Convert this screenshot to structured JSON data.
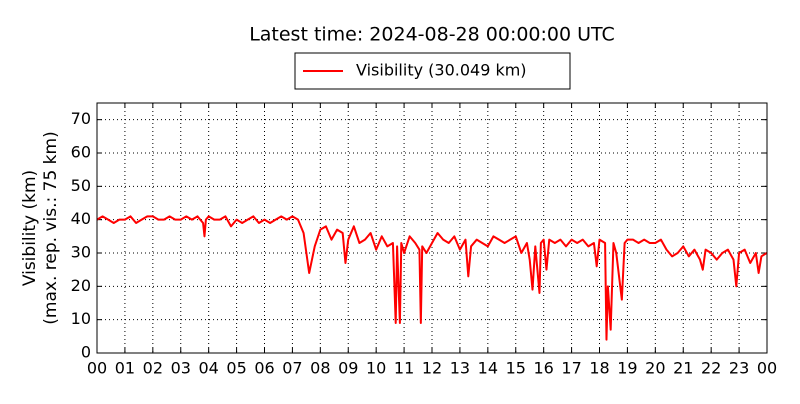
{
  "chart_data": {
    "type": "line",
    "title": "Latest time: 2024-08-28 00:00:00 UTC",
    "y_label": [
      "Visibility (km)",
      "(max. rep. vis.: 75 km)"
    ],
    "legend_position": "top",
    "grid": true,
    "xlim": [
      0,
      24
    ],
    "xticks": [
      {
        "value": 0,
        "label": "00"
      },
      {
        "value": 1,
        "label": "01"
      },
      {
        "value": 2,
        "label": "02"
      },
      {
        "value": 3,
        "label": "03"
      },
      {
        "value": 4,
        "label": "04"
      },
      {
        "value": 5,
        "label": "05"
      },
      {
        "value": 6,
        "label": "06"
      },
      {
        "value": 7,
        "label": "07"
      },
      {
        "value": 8,
        "label": "08"
      },
      {
        "value": 9,
        "label": "09"
      },
      {
        "value": 10,
        "label": "10"
      },
      {
        "value": 11,
        "label": "11"
      },
      {
        "value": 12,
        "label": "12"
      },
      {
        "value": 13,
        "label": "13"
      },
      {
        "value": 14,
        "label": "14"
      },
      {
        "value": 15,
        "label": "15"
      },
      {
        "value": 16,
        "label": "16"
      },
      {
        "value": 17,
        "label": "17"
      },
      {
        "value": 18,
        "label": "18"
      },
      {
        "value": 19,
        "label": "19"
      },
      {
        "value": 20,
        "label": "20"
      },
      {
        "value": 21,
        "label": "21"
      },
      {
        "value": 22,
        "label": "22"
      },
      {
        "value": 23,
        "label": "23"
      },
      {
        "value": 24,
        "label": "00"
      }
    ],
    "ylim": [
      0,
      75
    ],
    "yticks": [
      0,
      10,
      20,
      30,
      40,
      50,
      60,
      70
    ],
    "x": [
      0,
      0.2,
      0.4,
      0.6,
      0.8,
      1.0,
      1.2,
      1.4,
      1.6,
      1.8,
      2.0,
      2.2,
      2.4,
      2.6,
      2.8,
      3.0,
      3.2,
      3.4,
      3.6,
      3.8,
      3.85,
      3.9,
      4.0,
      4.2,
      4.4,
      4.6,
      4.8,
      5.0,
      5.2,
      5.4,
      5.6,
      5.8,
      6.0,
      6.2,
      6.4,
      6.6,
      6.8,
      7.0,
      7.2,
      7.4,
      7.5,
      7.6,
      7.7,
      7.8,
      8.0,
      8.2,
      8.4,
      8.6,
      8.8,
      8.9,
      9.0,
      9.2,
      9.4,
      9.6,
      9.8,
      10.0,
      10.2,
      10.4,
      10.6,
      10.7,
      10.75,
      10.85,
      10.9,
      11.0,
      11.2,
      11.4,
      11.55,
      11.6,
      11.65,
      11.8,
      12.0,
      12.2,
      12.4,
      12.6,
      12.8,
      13.0,
      13.2,
      13.3,
      13.4,
      13.6,
      13.8,
      14.0,
      14.2,
      14.4,
      14.6,
      14.8,
      15.0,
      15.2,
      15.4,
      15.5,
      15.6,
      15.7,
      15.85,
      15.9,
      16.0,
      16.1,
      16.2,
      16.4,
      16.6,
      16.8,
      17.0,
      17.2,
      17.4,
      17.6,
      17.8,
      17.9,
      18.0,
      18.2,
      18.25,
      18.3,
      18.4,
      18.5,
      18.6,
      18.8,
      18.9,
      19.0,
      19.2,
      19.4,
      19.6,
      19.8,
      20.0,
      20.2,
      20.4,
      20.6,
      20.8,
      21.0,
      21.2,
      21.4,
      21.6,
      21.7,
      21.8,
      22.0,
      22.2,
      22.4,
      22.6,
      22.8,
      22.9,
      23.0,
      23.2,
      23.4,
      23.6,
      23.7,
      23.8,
      24.0
    ],
    "series": [
      {
        "name": "Visibility (30.049 km)",
        "color": "#ff0000",
        "values": [
          40,
          41,
          40,
          39,
          40,
          40,
          41,
          39,
          40,
          41,
          41,
          40,
          40,
          41,
          40,
          40,
          41,
          40,
          41,
          39,
          35,
          40,
          41,
          40,
          40,
          41,
          38,
          40,
          39,
          40,
          41,
          39,
          40,
          39,
          40,
          41,
          40,
          41,
          40,
          36,
          30,
          24,
          28,
          32,
          37,
          38,
          34,
          37,
          36,
          27,
          34,
          38,
          33,
          34,
          36,
          31,
          35,
          32,
          33,
          9,
          32,
          9,
          33,
          30,
          35,
          33,
          31,
          9,
          32,
          30,
          33,
          36,
          34,
          33,
          35,
          31,
          34,
          23,
          32,
          34,
          33,
          32,
          35,
          34,
          33,
          34,
          35,
          30,
          33,
          28,
          19,
          32,
          18,
          33,
          34,
          25,
          34,
          33,
          34,
          32,
          34,
          33,
          34,
          32,
          33,
          26,
          34,
          33,
          4,
          20,
          7,
          33,
          30,
          16,
          33,
          34,
          34,
          33,
          34,
          33,
          33,
          34,
          31,
          29,
          30,
          32,
          29,
          31,
          28,
          25,
          31,
          30,
          28,
          30,
          31,
          28,
          20,
          30,
          31,
          27,
          30,
          24,
          29,
          30.049
        ]
      }
    ]
  }
}
